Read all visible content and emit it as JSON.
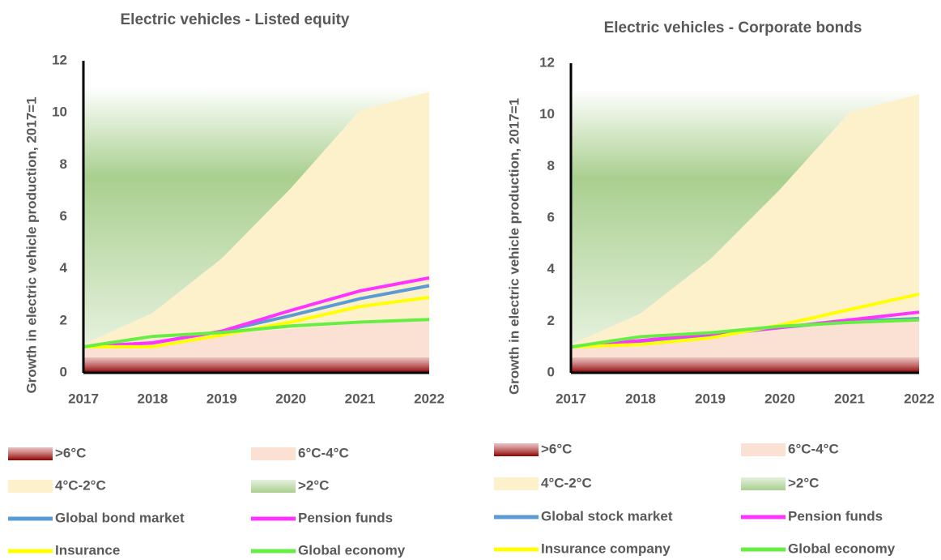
{
  "chart_data": [
    {
      "type": "band-line",
      "title": "Electric vehicles - Listed equity",
      "y_label": "Growth in electric vehicle production, 2017=1",
      "categories": [
        "2017",
        "2018",
        "2019",
        "2020",
        "2021",
        "2022"
      ],
      "ylim": [
        0,
        12
      ],
      "yticks": [
        0,
        2,
        4,
        6,
        8,
        10,
        12
      ],
      "bands": [
        {
          "name": ">6°C",
          "color": "#c0504d",
          "values": [
            0.6,
            0.6,
            0.6,
            0.6,
            0.6,
            0.6
          ]
        },
        {
          "name": "6°C-4°C",
          "color": "#fbe1d3",
          "values": [
            1.0,
            1.3,
            1.5,
            1.7,
            1.9,
            2.0
          ]
        },
        {
          "name": "4°C-2°C",
          "color": "#fdf1cc",
          "values": [
            1.1,
            2.3,
            4.4,
            7.1,
            10.1,
            10.8
          ]
        },
        {
          "name": ">2°C",
          "color": "#a9cf8f",
          "values": [
            11,
            11,
            11,
            11,
            11,
            11
          ]
        }
      ],
      "series": [
        {
          "name": "Global bond market",
          "color": "#5b9bd5",
          "values": [
            1.0,
            1.15,
            1.6,
            2.2,
            2.85,
            3.35
          ]
        },
        {
          "name": "Pension funds",
          "color": "#ff33ff",
          "values": [
            1.0,
            1.15,
            1.6,
            2.4,
            3.15,
            3.65
          ]
        },
        {
          "name": "Insurance",
          "color": "#ffff00",
          "values": [
            1.0,
            1.0,
            1.45,
            1.95,
            2.55,
            2.9
          ]
        },
        {
          "name": "Global economy",
          "color": "#66ee44",
          "values": [
            1.0,
            1.4,
            1.55,
            1.8,
            1.95,
            2.05
          ]
        }
      ]
    },
    {
      "type": "band-line",
      "title": "Electric vehicles - Corporate bonds",
      "y_label": "Growth in electric vehicle production, 2017=1",
      "categories": [
        "2017",
        "2018",
        "2019",
        "2020",
        "2021",
        "2022"
      ],
      "ylim": [
        0,
        12
      ],
      "yticks": [
        0,
        2,
        4,
        6,
        8,
        10,
        12
      ],
      "bands": [
        {
          "name": ">6°C",
          "color": "#c0504d",
          "values": [
            0.6,
            0.6,
            0.6,
            0.6,
            0.6,
            0.6
          ]
        },
        {
          "name": "6°C-4°C",
          "color": "#fbe1d3",
          "values": [
            1.0,
            1.3,
            1.5,
            1.7,
            1.9,
            2.0
          ]
        },
        {
          "name": "4°C-2°C",
          "color": "#fdf1cc",
          "values": [
            1.1,
            2.3,
            4.4,
            7.1,
            10.1,
            10.8
          ]
        },
        {
          "name": ">2°C",
          "color": "#a9cf8f",
          "values": [
            11,
            11,
            11,
            11,
            11,
            11
          ]
        }
      ],
      "series": [
        {
          "name": "Global stock market",
          "color": "#5b9bd5",
          "values": [
            1.0,
            1.2,
            1.45,
            1.75,
            2.0,
            2.1
          ]
        },
        {
          "name": "Pension funds",
          "color": "#ff33ff",
          "values": [
            1.0,
            1.25,
            1.5,
            1.75,
            2.05,
            2.35
          ]
        },
        {
          "name": "Insurance company",
          "color": "#ffff00",
          "values": [
            1.0,
            1.1,
            1.35,
            1.85,
            2.45,
            3.05
          ]
        },
        {
          "name": "Global economy",
          "color": "#66ee44",
          "values": [
            1.0,
            1.4,
            1.55,
            1.8,
            1.95,
            2.05
          ]
        }
      ]
    }
  ]
}
